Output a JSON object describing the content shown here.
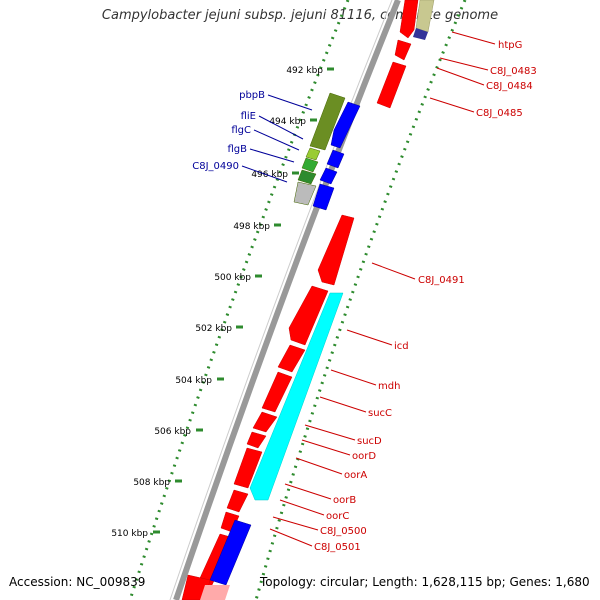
{
  "title": "Campylobacter jejuni subsp. jejuni 81116, complete genome",
  "footer": {
    "accession": "Accession: NC_009839",
    "topology": "Topology: circular; Length: 1,628,115 bp; Genes: 1,680"
  },
  "colors": {
    "backbone": "#888888",
    "dotted_track": "#2e8b2e",
    "forward_gene": "#ff0000",
    "reverse_gene": "#0000ff",
    "label_forward": "#cc0000",
    "label_reverse": "#000099"
  },
  "ticks": [
    "492 kbp",
    "494 kbp",
    "496 kbp",
    "498 kbp",
    "500 kbp",
    "502 kbp",
    "504 kbp",
    "506 kbp",
    "508 kbp",
    "510 kbp"
  ],
  "labels_right": [
    "htpG",
    "C8J_0483",
    "C8J_0484",
    "C8J_0485",
    "C8J_0491",
    "icd",
    "mdh",
    "sucC",
    "sucD",
    "oorD",
    "oorA",
    "oorB",
    "oorC",
    "C8J_0500",
    "C8J_0501"
  ],
  "labels_left": [
    "pbpB",
    "fliE",
    "flgC",
    "flgB",
    "C8J_0490"
  ]
}
